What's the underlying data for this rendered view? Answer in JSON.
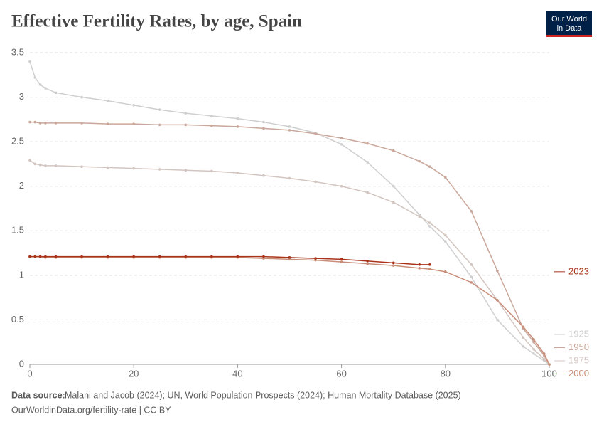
{
  "chart_data": {
    "type": "line",
    "title": "Effective Fertility Rates, by age, Spain",
    "logo": [
      "Our World",
      "in Data"
    ],
    "source_label": "Data source:",
    "source": "Malani and Jacob (2024); UN, World Population Prospects (2024); Human Mortality Database (2025)",
    "url": "OurWorldinData.org/fertility-rate | CC BY",
    "x": [
      0,
      1,
      2,
      3,
      5,
      10,
      15,
      20,
      25,
      30,
      35,
      40,
      45,
      50,
      55,
      60,
      65,
      70,
      75,
      77,
      80,
      85,
      90,
      95,
      97,
      99,
      100
    ],
    "xlim": [
      0,
      100
    ],
    "xticks": [
      0,
      20,
      40,
      60,
      80,
      100
    ],
    "ylim": [
      0,
      3.5
    ],
    "yticks": [
      0,
      0.5,
      1,
      1.5,
      2,
      2.5,
      3,
      3.5
    ],
    "grid": true,
    "series": [
      {
        "name": "1925",
        "color": "#cfcfcf",
        "values": [
          3.4,
          3.22,
          3.14,
          3.1,
          3.05,
          3.0,
          2.96,
          2.91,
          2.86,
          2.82,
          2.79,
          2.76,
          2.72,
          2.67,
          2.6,
          2.47,
          2.27,
          2.0,
          1.68,
          1.55,
          1.38,
          0.98,
          0.5,
          0.2,
          0.12,
          0.04,
          0
        ]
      },
      {
        "name": "1950",
        "color": "#caa79b",
        "values": [
          2.72,
          2.72,
          2.71,
          2.71,
          2.71,
          2.71,
          2.7,
          2.7,
          2.69,
          2.69,
          2.68,
          2.67,
          2.65,
          2.63,
          2.59,
          2.54,
          2.48,
          2.4,
          2.28,
          2.22,
          2.1,
          1.72,
          1.05,
          0.4,
          0.25,
          0.1,
          0
        ]
      },
      {
        "name": "1975",
        "color": "#d3c5c0",
        "values": [
          2.29,
          2.25,
          2.24,
          2.23,
          2.23,
          2.22,
          2.21,
          2.2,
          2.19,
          2.18,
          2.17,
          2.15,
          2.12,
          2.09,
          2.05,
          2.0,
          1.93,
          1.82,
          1.66,
          1.59,
          1.45,
          1.12,
          0.72,
          0.3,
          0.17,
          0.06,
          0
        ]
      },
      {
        "name": "2000",
        "color": "#c98e79",
        "values": [
          1.21,
          1.21,
          1.21,
          1.2,
          1.2,
          1.2,
          1.2,
          1.2,
          1.2,
          1.2,
          1.2,
          1.2,
          1.19,
          1.18,
          1.17,
          1.15,
          1.13,
          1.11,
          1.08,
          1.07,
          1.04,
          0.92,
          0.72,
          0.42,
          0.28,
          0.12,
          0
        ]
      },
      {
        "name": "2023",
        "color": "#a9341a",
        "values": [
          1.21,
          1.21,
          1.21,
          1.21,
          1.21,
          1.21,
          1.21,
          1.21,
          1.21,
          1.21,
          1.21,
          1.21,
          1.21,
          1.2,
          1.19,
          1.18,
          1.16,
          1.14,
          1.12,
          1.12,
          null,
          null,
          null,
          null,
          null,
          null,
          null
        ]
      }
    ]
  }
}
